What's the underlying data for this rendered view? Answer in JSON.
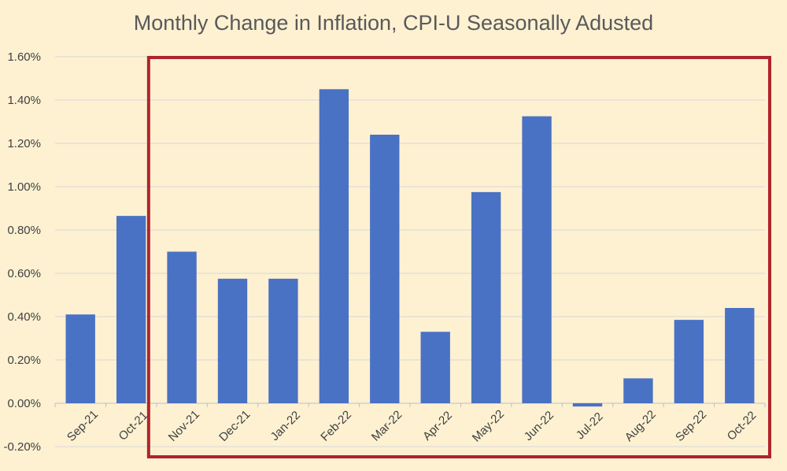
{
  "chart_data": {
    "type": "bar",
    "title": "Monthly Change in Inflation, CPI-U Seasonally Adusted",
    "categories": [
      "Sep-21",
      "Oct-21",
      "Nov-21",
      "Dec-21",
      "Jan-22",
      "Feb-22",
      "Mar-22",
      "Apr-22",
      "May-22",
      "Jun-22",
      "Jul-22",
      "Aug-22",
      "Sep-22",
      "Oct-22"
    ],
    "values": [
      0.41,
      0.865,
      0.7,
      0.575,
      0.575,
      1.45,
      1.24,
      0.33,
      0.975,
      1.325,
      -0.015,
      0.115,
      0.385,
      0.44
    ],
    "ylim": [
      -0.2,
      1.6
    ],
    "yticks": [
      "-0.20%",
      "0.00%",
      "0.20%",
      "0.40%",
      "0.60%",
      "0.80%",
      "1.00%",
      "1.20%",
      "1.40%",
      "1.60%"
    ],
    "xlabel": "",
    "ylabel": "",
    "grid": true,
    "bar_color": "#4a72c4",
    "highlight": {
      "from_category": "Nov-21",
      "to_category": "Oct-22",
      "color": "#b0242a"
    }
  }
}
